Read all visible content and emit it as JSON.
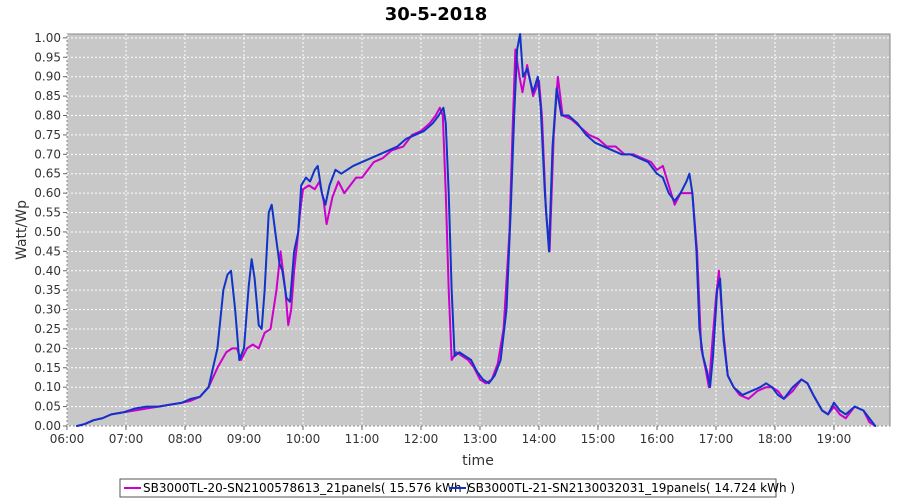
{
  "chart_data": {
    "type": "line",
    "title": "30-5-2018",
    "xlabel": "time",
    "ylabel": "Watt/Wp",
    "xlim": [
      6.0,
      19.95
    ],
    "ylim": [
      0.0,
      1.01
    ],
    "x_ticks": [
      {
        "value": 6.0,
        "label": "06:00"
      },
      {
        "value": 7.0,
        "label": "07:00"
      },
      {
        "value": 8.0,
        "label": "08:00"
      },
      {
        "value": 9.0,
        "label": "09:00"
      },
      {
        "value": 10.0,
        "label": "10:00"
      },
      {
        "value": 11.0,
        "label": "11:00"
      },
      {
        "value": 12.0,
        "label": "12:00"
      },
      {
        "value": 13.0,
        "label": "13:00"
      },
      {
        "value": 14.0,
        "label": "14:00"
      },
      {
        "value": 15.0,
        "label": "15:00"
      },
      {
        "value": 16.0,
        "label": "16:00"
      },
      {
        "value": 17.0,
        "label": "17:00"
      },
      {
        "value": 18.0,
        "label": "18:00"
      },
      {
        "value": 19.0,
        "label": "19:00"
      }
    ],
    "y_ticks": [
      "0.00",
      "0.05",
      "0.10",
      "0.15",
      "0.20",
      "0.25",
      "0.30",
      "0.35",
      "0.40",
      "0.45",
      "0.50",
      "0.55",
      "0.60",
      "0.65",
      "0.70",
      "0.75",
      "0.80",
      "0.85",
      "0.90",
      "0.95",
      "1.00"
    ],
    "grid": true,
    "legend_position": "bottom",
    "series": [
      {
        "name": "SB3000TL-20-SN2100578613_21panels( 15.576 kWh )",
        "color": "#cc00cc",
        "points": [
          [
            6.17,
            0.0
          ],
          [
            6.3,
            0.005
          ],
          [
            6.45,
            0.015
          ],
          [
            6.6,
            0.02
          ],
          [
            6.75,
            0.03
          ],
          [
            6.95,
            0.035
          ],
          [
            7.15,
            0.04
          ],
          [
            7.35,
            0.045
          ],
          [
            7.55,
            0.05
          ],
          [
            7.75,
            0.055
          ],
          [
            7.95,
            0.06
          ],
          [
            8.1,
            0.065
          ],
          [
            8.25,
            0.075
          ],
          [
            8.4,
            0.1
          ],
          [
            8.55,
            0.15
          ],
          [
            8.7,
            0.19
          ],
          [
            8.8,
            0.2
          ],
          [
            8.88,
            0.2
          ],
          [
            8.95,
            0.17
          ],
          [
            9.05,
            0.2
          ],
          [
            9.15,
            0.21
          ],
          [
            9.25,
            0.2
          ],
          [
            9.35,
            0.24
          ],
          [
            9.45,
            0.25
          ],
          [
            9.55,
            0.35
          ],
          [
            9.62,
            0.45
          ],
          [
            9.7,
            0.35
          ],
          [
            9.75,
            0.26
          ],
          [
            9.8,
            0.3
          ],
          [
            9.85,
            0.4
          ],
          [
            9.9,
            0.47
          ],
          [
            9.95,
            0.55
          ],
          [
            10.0,
            0.61
          ],
          [
            10.1,
            0.62
          ],
          [
            10.2,
            0.61
          ],
          [
            10.28,
            0.63
          ],
          [
            10.35,
            0.58
          ],
          [
            10.4,
            0.52
          ],
          [
            10.5,
            0.59
          ],
          [
            10.6,
            0.63
          ],
          [
            10.7,
            0.6
          ],
          [
            10.8,
            0.62
          ],
          [
            10.9,
            0.64
          ],
          [
            11.0,
            0.64
          ],
          [
            11.1,
            0.66
          ],
          [
            11.2,
            0.68
          ],
          [
            11.35,
            0.69
          ],
          [
            11.5,
            0.71
          ],
          [
            11.7,
            0.72
          ],
          [
            11.85,
            0.75
          ],
          [
            12.0,
            0.76
          ],
          [
            12.15,
            0.78
          ],
          [
            12.25,
            0.8
          ],
          [
            12.32,
            0.82
          ],
          [
            12.37,
            0.8
          ],
          [
            12.42,
            0.6
          ],
          [
            12.47,
            0.35
          ],
          [
            12.52,
            0.17
          ],
          [
            12.6,
            0.19
          ],
          [
            12.7,
            0.18
          ],
          [
            12.8,
            0.17
          ],
          [
            12.9,
            0.15
          ],
          [
            13.0,
            0.12
          ],
          [
            13.1,
            0.11
          ],
          [
            13.2,
            0.12
          ],
          [
            13.3,
            0.16
          ],
          [
            13.4,
            0.25
          ],
          [
            13.5,
            0.5
          ],
          [
            13.55,
            0.75
          ],
          [
            13.6,
            0.97
          ],
          [
            13.67,
            0.9
          ],
          [
            13.72,
            0.86
          ],
          [
            13.8,
            0.93
          ],
          [
            13.9,
            0.85
          ],
          [
            14.0,
            0.89
          ],
          [
            14.05,
            0.8
          ],
          [
            14.12,
            0.55
          ],
          [
            14.18,
            0.45
          ],
          [
            14.25,
            0.75
          ],
          [
            14.32,
            0.9
          ],
          [
            14.4,
            0.8
          ],
          [
            14.55,
            0.79
          ],
          [
            14.7,
            0.77
          ],
          [
            14.85,
            0.75
          ],
          [
            15.0,
            0.74
          ],
          [
            15.15,
            0.72
          ],
          [
            15.3,
            0.72
          ],
          [
            15.45,
            0.7
          ],
          [
            15.6,
            0.7
          ],
          [
            15.75,
            0.69
          ],
          [
            15.9,
            0.68
          ],
          [
            16.0,
            0.66
          ],
          [
            16.1,
            0.67
          ],
          [
            16.2,
            0.62
          ],
          [
            16.3,
            0.57
          ],
          [
            16.4,
            0.6
          ],
          [
            16.5,
            0.6
          ],
          [
            16.6,
            0.6
          ],
          [
            16.68,
            0.45
          ],
          [
            16.75,
            0.2
          ],
          [
            16.82,
            0.15
          ],
          [
            16.88,
            0.1
          ],
          [
            16.93,
            0.2
          ],
          [
            17.0,
            0.33
          ],
          [
            17.05,
            0.4
          ],
          [
            17.12,
            0.25
          ],
          [
            17.2,
            0.13
          ],
          [
            17.3,
            0.1
          ],
          [
            17.4,
            0.08
          ],
          [
            17.55,
            0.07
          ],
          [
            17.7,
            0.09
          ],
          [
            17.85,
            0.1
          ],
          [
            17.95,
            0.1
          ],
          [
            18.05,
            0.09
          ],
          [
            18.15,
            0.07
          ],
          [
            18.3,
            0.09
          ],
          [
            18.45,
            0.12
          ],
          [
            18.55,
            0.11
          ],
          [
            18.65,
            0.08
          ],
          [
            18.8,
            0.04
          ],
          [
            18.9,
            0.03
          ],
          [
            19.0,
            0.05
          ],
          [
            19.1,
            0.03
          ],
          [
            19.2,
            0.02
          ],
          [
            19.35,
            0.05
          ],
          [
            19.5,
            0.04
          ],
          [
            19.6,
            0.01
          ],
          [
            19.7,
            0.0
          ]
        ]
      },
      {
        "name": "SB3000TL-21-SN2130032031_19panels( 14.724 kWh )",
        "color": "#1034c8",
        "points": [
          [
            6.17,
            0.0
          ],
          [
            6.3,
            0.005
          ],
          [
            6.45,
            0.015
          ],
          [
            6.6,
            0.02
          ],
          [
            6.75,
            0.03
          ],
          [
            6.95,
            0.035
          ],
          [
            7.15,
            0.045
          ],
          [
            7.35,
            0.05
          ],
          [
            7.55,
            0.05
          ],
          [
            7.75,
            0.055
          ],
          [
            7.95,
            0.06
          ],
          [
            8.1,
            0.07
          ],
          [
            8.25,
            0.075
          ],
          [
            8.4,
            0.1
          ],
          [
            8.55,
            0.2
          ],
          [
            8.65,
            0.35
          ],
          [
            8.72,
            0.39
          ],
          [
            8.78,
            0.4
          ],
          [
            8.85,
            0.3
          ],
          [
            8.92,
            0.17
          ],
          [
            9.0,
            0.2
          ],
          [
            9.08,
            0.36
          ],
          [
            9.13,
            0.43
          ],
          [
            9.18,
            0.38
          ],
          [
            9.25,
            0.26
          ],
          [
            9.3,
            0.25
          ],
          [
            9.35,
            0.35
          ],
          [
            9.42,
            0.55
          ],
          [
            9.47,
            0.57
          ],
          [
            9.53,
            0.5
          ],
          [
            9.6,
            0.42
          ],
          [
            9.65,
            0.4
          ],
          [
            9.72,
            0.33
          ],
          [
            9.78,
            0.32
          ],
          [
            9.85,
            0.45
          ],
          [
            9.92,
            0.5
          ],
          [
            9.97,
            0.62
          ],
          [
            10.05,
            0.64
          ],
          [
            10.12,
            0.63
          ],
          [
            10.2,
            0.66
          ],
          [
            10.25,
            0.67
          ],
          [
            10.32,
            0.6
          ],
          [
            10.38,
            0.57
          ],
          [
            10.45,
            0.62
          ],
          [
            10.55,
            0.66
          ],
          [
            10.65,
            0.65
          ],
          [
            10.75,
            0.66
          ],
          [
            10.85,
            0.67
          ],
          [
            11.0,
            0.68
          ],
          [
            11.15,
            0.69
          ],
          [
            11.3,
            0.7
          ],
          [
            11.45,
            0.71
          ],
          [
            11.6,
            0.72
          ],
          [
            11.75,
            0.74
          ],
          [
            11.9,
            0.75
          ],
          [
            12.05,
            0.76
          ],
          [
            12.2,
            0.78
          ],
          [
            12.3,
            0.8
          ],
          [
            12.38,
            0.82
          ],
          [
            12.42,
            0.78
          ],
          [
            12.47,
            0.6
          ],
          [
            12.52,
            0.35
          ],
          [
            12.57,
            0.18
          ],
          [
            12.65,
            0.19
          ],
          [
            12.75,
            0.18
          ],
          [
            12.85,
            0.17
          ],
          [
            12.95,
            0.14
          ],
          [
            13.05,
            0.12
          ],
          [
            13.15,
            0.11
          ],
          [
            13.25,
            0.13
          ],
          [
            13.35,
            0.17
          ],
          [
            13.45,
            0.3
          ],
          [
            13.52,
            0.55
          ],
          [
            13.58,
            0.8
          ],
          [
            13.63,
            0.97
          ],
          [
            13.68,
            1.01
          ],
          [
            13.73,
            0.9
          ],
          [
            13.8,
            0.92
          ],
          [
            13.9,
            0.86
          ],
          [
            13.98,
            0.9
          ],
          [
            14.03,
            0.82
          ],
          [
            14.1,
            0.6
          ],
          [
            14.17,
            0.45
          ],
          [
            14.23,
            0.72
          ],
          [
            14.3,
            0.87
          ],
          [
            14.38,
            0.8
          ],
          [
            14.5,
            0.8
          ],
          [
            14.65,
            0.78
          ],
          [
            14.8,
            0.75
          ],
          [
            14.95,
            0.73
          ],
          [
            15.1,
            0.72
          ],
          [
            15.25,
            0.71
          ],
          [
            15.4,
            0.7
          ],
          [
            15.55,
            0.7
          ],
          [
            15.7,
            0.69
          ],
          [
            15.85,
            0.68
          ],
          [
            16.0,
            0.65
          ],
          [
            16.1,
            0.64
          ],
          [
            16.2,
            0.6
          ],
          [
            16.3,
            0.58
          ],
          [
            16.4,
            0.6
          ],
          [
            16.5,
            0.63
          ],
          [
            16.55,
            0.65
          ],
          [
            16.6,
            0.6
          ],
          [
            16.67,
            0.45
          ],
          [
            16.72,
            0.25
          ],
          [
            16.78,
            0.18
          ],
          [
            16.85,
            0.14
          ],
          [
            16.9,
            0.1
          ],
          [
            16.95,
            0.18
          ],
          [
            17.02,
            0.35
          ],
          [
            17.07,
            0.38
          ],
          [
            17.13,
            0.22
          ],
          [
            17.2,
            0.13
          ],
          [
            17.3,
            0.1
          ],
          [
            17.45,
            0.08
          ],
          [
            17.6,
            0.09
          ],
          [
            17.75,
            0.1
          ],
          [
            17.85,
            0.11
          ],
          [
            17.95,
            0.1
          ],
          [
            18.05,
            0.08
          ],
          [
            18.15,
            0.07
          ],
          [
            18.3,
            0.1
          ],
          [
            18.45,
            0.12
          ],
          [
            18.55,
            0.11
          ],
          [
            18.65,
            0.08
          ],
          [
            18.8,
            0.04
          ],
          [
            18.9,
            0.03
          ],
          [
            19.0,
            0.06
          ],
          [
            19.1,
            0.04
          ],
          [
            19.2,
            0.03
          ],
          [
            19.35,
            0.05
          ],
          [
            19.5,
            0.04
          ],
          [
            19.6,
            0.02
          ],
          [
            19.7,
            0.0
          ]
        ]
      }
    ]
  }
}
